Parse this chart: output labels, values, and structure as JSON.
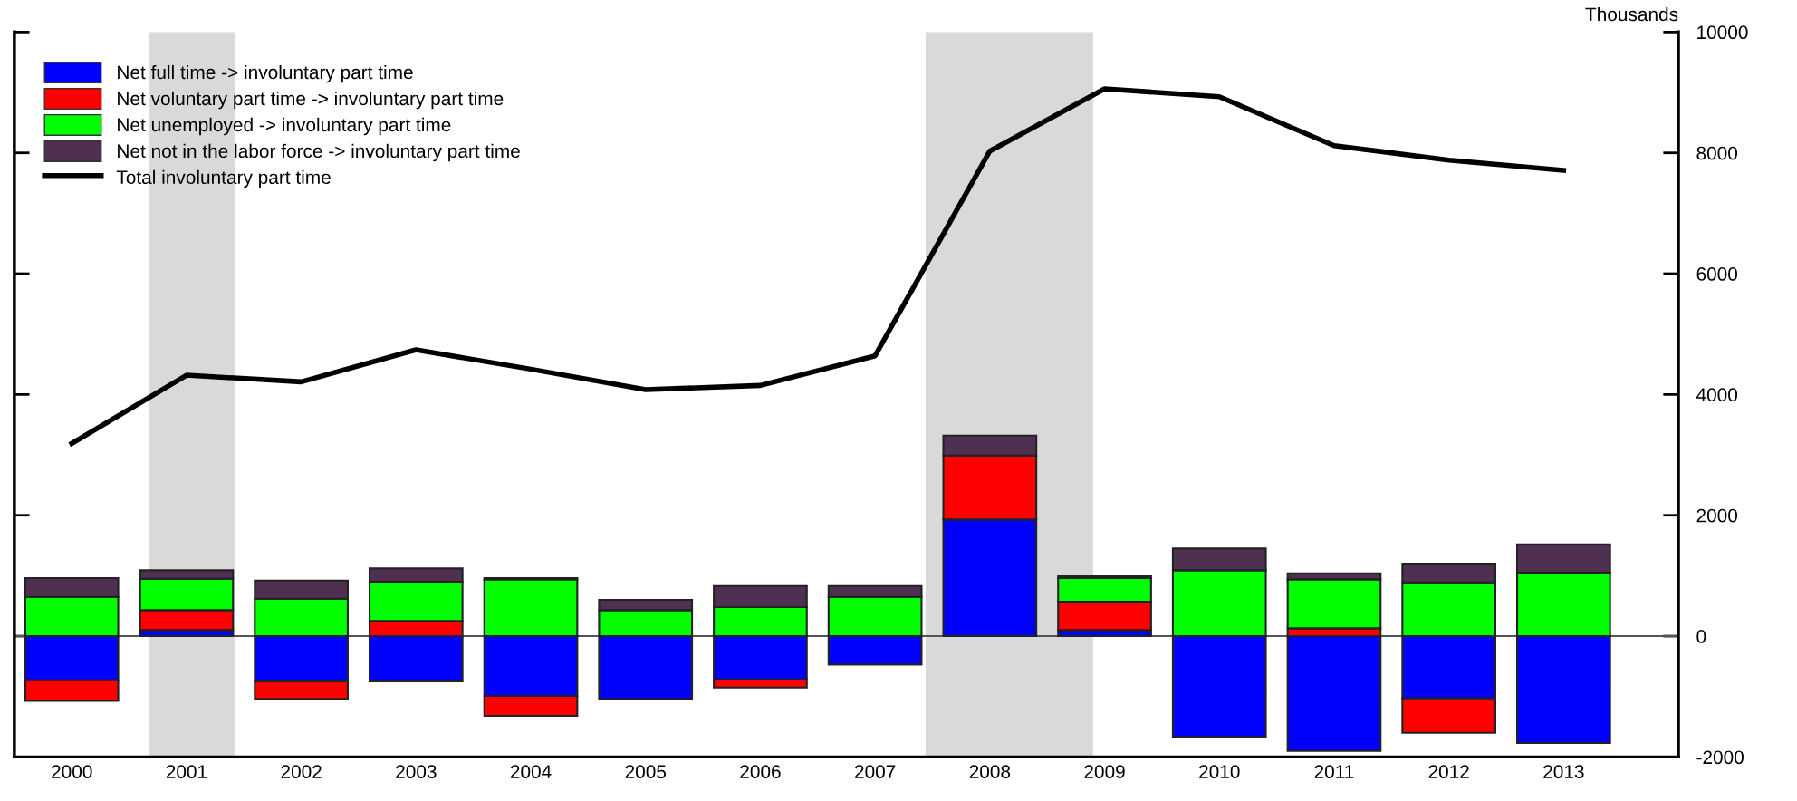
{
  "chart_data": {
    "type": "bar",
    "stacked": true,
    "ylabel": "Thousands",
    "x": [
      2000,
      2001,
      2002,
      2003,
      2004,
      2005,
      2006,
      2007,
      2008,
      2009,
      2010,
      2011,
      2012,
      2013
    ],
    "series": [
      {
        "name": "Net full time -> involuntary part time",
        "color": "#0000ff",
        "values": [
          -730,
          100,
          -750,
          -750,
          -990,
          -1040,
          -720,
          -470,
          1930,
          100,
          -1670,
          -1900,
          -1030,
          -1770
        ]
      },
      {
        "name": "Net voluntary part time -> involuntary part time",
        "color": "#ff0000",
        "values": [
          -340,
          330,
          -290,
          250,
          -330,
          null,
          -130,
          null,
          1060,
          470,
          null,
          130,
          -570,
          null
        ]
      },
      {
        "name": "Net unemployed -> involuntary part time",
        "color": "#00ff00",
        "values": [
          650,
          520,
          620,
          650,
          940,
          430,
          480,
          650,
          null,
          390,
          1090,
          810,
          890,
          1050
        ]
      },
      {
        "name": "Net not in the labor force -> involuntary part time",
        "color": "#4f3050",
        "values": [
          310,
          140,
          300,
          220,
          20,
          170,
          350,
          180,
          330,
          30,
          360,
          100,
          310,
          470
        ]
      },
      {
        "name": "Total involuntary part time",
        "type": "line",
        "color": "#000000",
        "values": [
          3190,
          4320,
          4210,
          4740,
          4420,
          4080,
          4150,
          4640,
          8030,
          9060,
          8930,
          8120,
          7880,
          7710
        ]
      }
    ],
    "xlim": [
      1999.5,
      2014
    ],
    "xticks": [
      2000,
      2001,
      2002,
      2003,
      2004,
      2005,
      2006,
      2007,
      2008,
      2009,
      2010,
      2011,
      2012,
      2013
    ],
    "ylim": [
      -2000,
      10000
    ],
    "yticks": [
      -2000,
      0,
      2000,
      4000,
      6000,
      8000,
      10000
    ],
    "bands": [
      {
        "axis": "x",
        "from": 2000.67,
        "to": 2001.42,
        "color": "#d9d9d9"
      },
      {
        "axis": "x",
        "from": 2007.44,
        "to": 2008.9,
        "color": "#d9d9d9"
      }
    ],
    "ref_lines": [
      {
        "axis": "y",
        "value": 0,
        "color": "#555555"
      }
    ],
    "legend": "top left",
    "grid": false
  }
}
